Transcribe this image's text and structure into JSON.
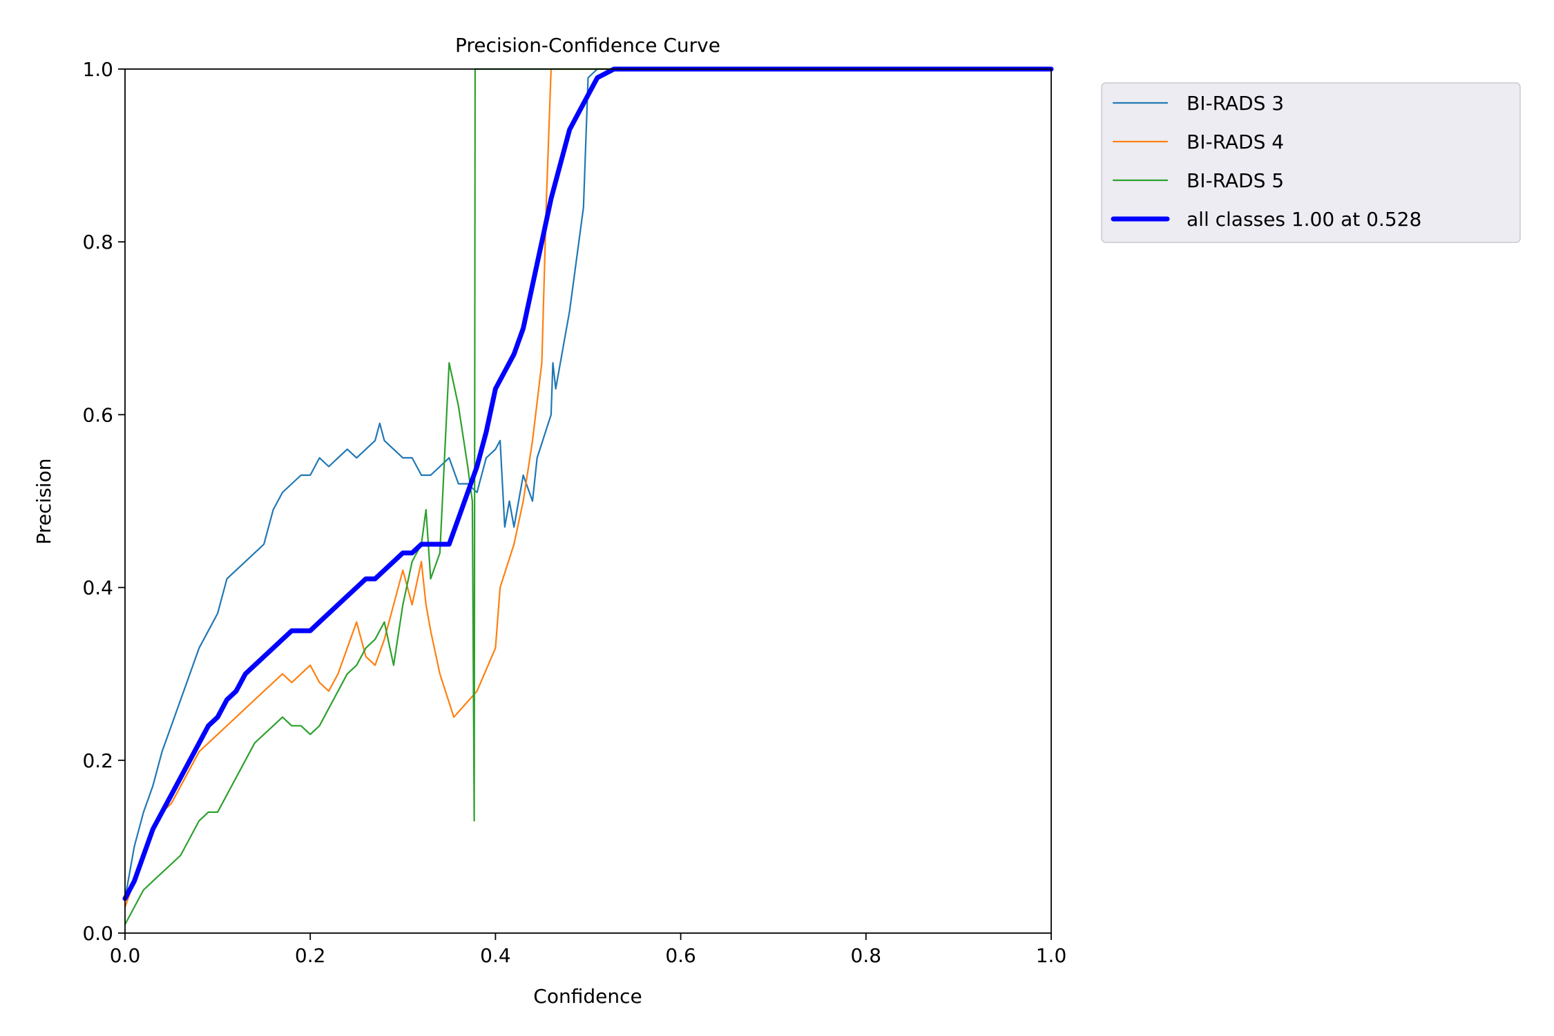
{
  "chart_data": {
    "type": "line",
    "title": "Precision-Confidence Curve",
    "xlabel": "Confidence",
    "ylabel": "Precision",
    "xlim": [
      0.0,
      1.0
    ],
    "ylim": [
      0.0,
      1.0
    ],
    "xticks": [
      "0.0",
      "0.2",
      "0.4",
      "0.6",
      "0.8",
      "1.0"
    ],
    "yticks": [
      "0.0",
      "0.2",
      "0.4",
      "0.6",
      "0.8",
      "1.0"
    ],
    "grid": false,
    "legend_position": "outside top-right",
    "series": [
      {
        "name": "BI-RADS 3",
        "color": "#1f77b4",
        "style": "thin",
        "points": [
          [
            0.0,
            0.04
          ],
          [
            0.01,
            0.1
          ],
          [
            0.02,
            0.14
          ],
          [
            0.03,
            0.17
          ],
          [
            0.04,
            0.21
          ],
          [
            0.05,
            0.24
          ],
          [
            0.06,
            0.27
          ],
          [
            0.07,
            0.3
          ],
          [
            0.08,
            0.33
          ],
          [
            0.09,
            0.35
          ],
          [
            0.1,
            0.37
          ],
          [
            0.11,
            0.41
          ],
          [
            0.12,
            0.42
          ],
          [
            0.13,
            0.43
          ],
          [
            0.14,
            0.44
          ],
          [
            0.15,
            0.45
          ],
          [
            0.16,
            0.49
          ],
          [
            0.17,
            0.51
          ],
          [
            0.18,
            0.52
          ],
          [
            0.19,
            0.53
          ],
          [
            0.2,
            0.53
          ],
          [
            0.21,
            0.55
          ],
          [
            0.22,
            0.54
          ],
          [
            0.23,
            0.55
          ],
          [
            0.24,
            0.56
          ],
          [
            0.25,
            0.55
          ],
          [
            0.26,
            0.56
          ],
          [
            0.27,
            0.57
          ],
          [
            0.275,
            0.59
          ],
          [
            0.28,
            0.57
          ],
          [
            0.29,
            0.56
          ],
          [
            0.3,
            0.55
          ],
          [
            0.31,
            0.55
          ],
          [
            0.32,
            0.53
          ],
          [
            0.33,
            0.53
          ],
          [
            0.34,
            0.54
          ],
          [
            0.35,
            0.55
          ],
          [
            0.36,
            0.52
          ],
          [
            0.37,
            0.52
          ],
          [
            0.38,
            0.51
          ],
          [
            0.39,
            0.55
          ],
          [
            0.4,
            0.56
          ],
          [
            0.405,
            0.57
          ],
          [
            0.41,
            0.47
          ],
          [
            0.415,
            0.5
          ],
          [
            0.42,
            0.47
          ],
          [
            0.43,
            0.53
          ],
          [
            0.44,
            0.5
          ],
          [
            0.445,
            0.55
          ],
          [
            0.46,
            0.6
          ],
          [
            0.462,
            0.66
          ],
          [
            0.465,
            0.63
          ],
          [
            0.48,
            0.72
          ],
          [
            0.495,
            0.84
          ],
          [
            0.5,
            0.99
          ],
          [
            0.51,
            1.0
          ],
          [
            1.0,
            1.0
          ]
        ]
      },
      {
        "name": "BI-RADS 4",
        "color": "#ff7f0e",
        "style": "thin",
        "points": [
          [
            0.0,
            0.03
          ],
          [
            0.01,
            0.06
          ],
          [
            0.02,
            0.09
          ],
          [
            0.03,
            0.12
          ],
          [
            0.04,
            0.14
          ],
          [
            0.05,
            0.15
          ],
          [
            0.06,
            0.17
          ],
          [
            0.07,
            0.19
          ],
          [
            0.08,
            0.21
          ],
          [
            0.09,
            0.22
          ],
          [
            0.1,
            0.23
          ],
          [
            0.11,
            0.24
          ],
          [
            0.12,
            0.25
          ],
          [
            0.13,
            0.26
          ],
          [
            0.14,
            0.27
          ],
          [
            0.15,
            0.28
          ],
          [
            0.16,
            0.29
          ],
          [
            0.17,
            0.3
          ],
          [
            0.18,
            0.29
          ],
          [
            0.19,
            0.3
          ],
          [
            0.2,
            0.31
          ],
          [
            0.21,
            0.29
          ],
          [
            0.22,
            0.28
          ],
          [
            0.23,
            0.3
          ],
          [
            0.24,
            0.33
          ],
          [
            0.25,
            0.36
          ],
          [
            0.26,
            0.32
          ],
          [
            0.27,
            0.31
          ],
          [
            0.28,
            0.34
          ],
          [
            0.29,
            0.38
          ],
          [
            0.3,
            0.42
          ],
          [
            0.31,
            0.38
          ],
          [
            0.32,
            0.43
          ],
          [
            0.325,
            0.38
          ],
          [
            0.33,
            0.35
          ],
          [
            0.34,
            0.3
          ],
          [
            0.355,
            0.25
          ],
          [
            0.38,
            0.28
          ],
          [
            0.4,
            0.33
          ],
          [
            0.405,
            0.4
          ],
          [
            0.42,
            0.45
          ],
          [
            0.43,
            0.5
          ],
          [
            0.44,
            0.57
          ],
          [
            0.45,
            0.66
          ],
          [
            0.455,
            0.85
          ],
          [
            0.46,
            1.0
          ],
          [
            1.0,
            1.0
          ]
        ]
      },
      {
        "name": "BI-RADS 5",
        "color": "#2ca02c",
        "style": "thin",
        "points": [
          [
            0.0,
            0.01
          ],
          [
            0.01,
            0.03
          ],
          [
            0.02,
            0.05
          ],
          [
            0.03,
            0.06
          ],
          [
            0.04,
            0.07
          ],
          [
            0.05,
            0.08
          ],
          [
            0.06,
            0.09
          ],
          [
            0.07,
            0.11
          ],
          [
            0.08,
            0.13
          ],
          [
            0.09,
            0.14
          ],
          [
            0.1,
            0.14
          ],
          [
            0.11,
            0.16
          ],
          [
            0.12,
            0.18
          ],
          [
            0.13,
            0.2
          ],
          [
            0.14,
            0.22
          ],
          [
            0.15,
            0.23
          ],
          [
            0.16,
            0.24
          ],
          [
            0.17,
            0.25
          ],
          [
            0.18,
            0.24
          ],
          [
            0.19,
            0.24
          ],
          [
            0.2,
            0.23
          ],
          [
            0.21,
            0.24
          ],
          [
            0.22,
            0.26
          ],
          [
            0.23,
            0.28
          ],
          [
            0.24,
            0.3
          ],
          [
            0.25,
            0.31
          ],
          [
            0.26,
            0.33
          ],
          [
            0.27,
            0.34
          ],
          [
            0.28,
            0.36
          ],
          [
            0.29,
            0.31
          ],
          [
            0.3,
            0.38
          ],
          [
            0.31,
            0.43
          ],
          [
            0.32,
            0.45
          ],
          [
            0.325,
            0.49
          ],
          [
            0.33,
            0.41
          ],
          [
            0.34,
            0.44
          ],
          [
            0.35,
            0.66
          ],
          [
            0.36,
            0.61
          ],
          [
            0.37,
            0.54
          ],
          [
            0.375,
            0.5
          ],
          [
            0.377,
            0.13
          ],
          [
            0.378,
            1.0
          ],
          [
            1.0,
            1.0
          ]
        ]
      },
      {
        "name": "all classes 1.00 at 0.528",
        "color": "#0000ff",
        "style": "thick",
        "points": [
          [
            0.0,
            0.04
          ],
          [
            0.01,
            0.06
          ],
          [
            0.02,
            0.09
          ],
          [
            0.03,
            0.12
          ],
          [
            0.04,
            0.14
          ],
          [
            0.05,
            0.16
          ],
          [
            0.06,
            0.18
          ],
          [
            0.07,
            0.2
          ],
          [
            0.08,
            0.22
          ],
          [
            0.09,
            0.24
          ],
          [
            0.1,
            0.25
          ],
          [
            0.11,
            0.27
          ],
          [
            0.12,
            0.28
          ],
          [
            0.13,
            0.3
          ],
          [
            0.14,
            0.31
          ],
          [
            0.15,
            0.32
          ],
          [
            0.16,
            0.33
          ],
          [
            0.17,
            0.34
          ],
          [
            0.18,
            0.35
          ],
          [
            0.19,
            0.35
          ],
          [
            0.2,
            0.35
          ],
          [
            0.21,
            0.36
          ],
          [
            0.22,
            0.37
          ],
          [
            0.23,
            0.38
          ],
          [
            0.24,
            0.39
          ],
          [
            0.25,
            0.4
          ],
          [
            0.26,
            0.41
          ],
          [
            0.27,
            0.41
          ],
          [
            0.28,
            0.42
          ],
          [
            0.29,
            0.43
          ],
          [
            0.3,
            0.44
          ],
          [
            0.31,
            0.44
          ],
          [
            0.32,
            0.45
          ],
          [
            0.33,
            0.45
          ],
          [
            0.34,
            0.45
          ],
          [
            0.35,
            0.45
          ],
          [
            0.36,
            0.48
          ],
          [
            0.37,
            0.51
          ],
          [
            0.38,
            0.54
          ],
          [
            0.39,
            0.58
          ],
          [
            0.4,
            0.63
          ],
          [
            0.41,
            0.65
          ],
          [
            0.42,
            0.67
          ],
          [
            0.43,
            0.7
          ],
          [
            0.44,
            0.75
          ],
          [
            0.45,
            0.8
          ],
          [
            0.46,
            0.85
          ],
          [
            0.47,
            0.89
          ],
          [
            0.48,
            0.93
          ],
          [
            0.49,
            0.95
          ],
          [
            0.5,
            0.97
          ],
          [
            0.51,
            0.99
          ],
          [
            0.528,
            1.0
          ],
          [
            1.0,
            1.0
          ]
        ]
      }
    ]
  }
}
